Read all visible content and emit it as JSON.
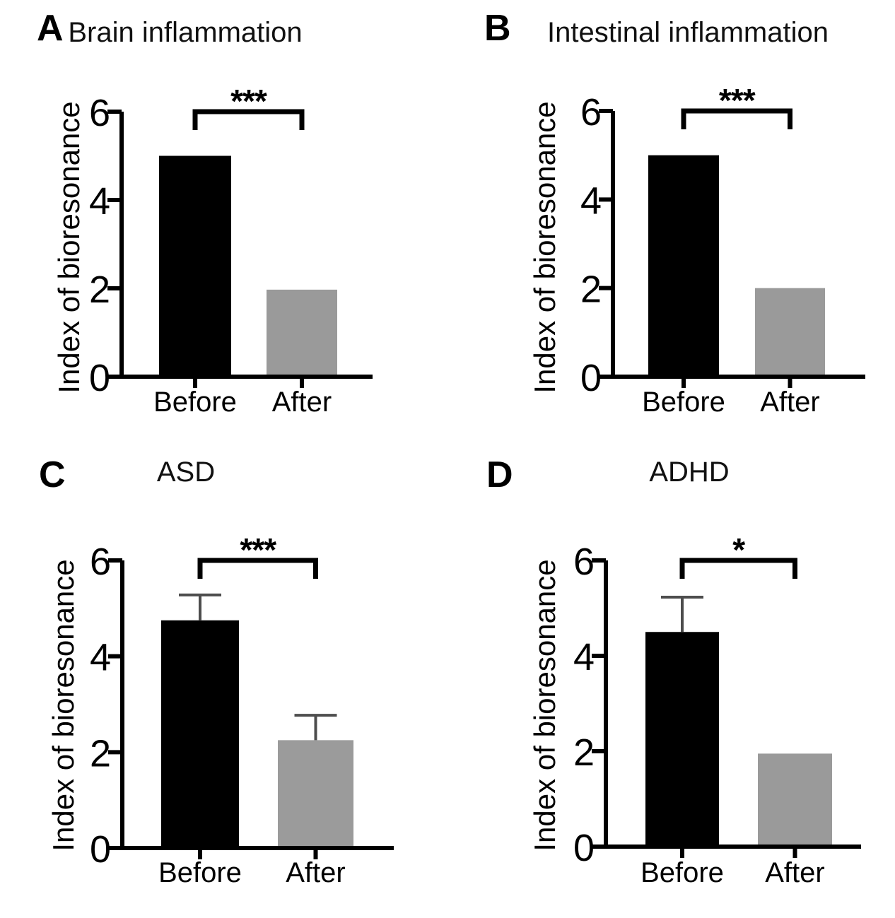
{
  "figure": {
    "background": "#ffffff",
    "panel_count": 4
  },
  "chart_data": [
    {
      "type": "bar",
      "panel_label": "A",
      "title": "Brain inflammation",
      "categories": [
        "Before",
        "After"
      ],
      "values": [
        5.0,
        1.97
      ],
      "errors": [
        0,
        0
      ],
      "significance": "***",
      "ylabel": "Index of bioresonance",
      "yticks": [
        0,
        2,
        4,
        6
      ],
      "ylim": [
        0,
        6
      ],
      "bar_colors": [
        "#000000",
        "#9a9a9a"
      ],
      "error_color": "#4d4d4d",
      "axis_color": "#000000",
      "legend": "none",
      "grid": "off"
    },
    {
      "type": "bar",
      "panel_label": "B",
      "title": "Intestinal inflammation",
      "categories": [
        "Before",
        "After"
      ],
      "values": [
        5.0,
        2.0
      ],
      "errors": [
        0,
        0
      ],
      "significance": "***",
      "ylabel": "Index of bioresonance",
      "yticks": [
        0,
        2,
        4,
        6
      ],
      "ylim": [
        0,
        6
      ],
      "bar_colors": [
        "#000000",
        "#9a9a9a"
      ],
      "error_color": "#4d4d4d",
      "axis_color": "#000000",
      "legend": "none",
      "grid": "off"
    },
    {
      "type": "bar",
      "panel_label": "C",
      "title": "ASD",
      "categories": [
        "Before",
        "After"
      ],
      "values": [
        4.75,
        2.25
      ],
      "errors": [
        0.53,
        0.52
      ],
      "significance": "***",
      "ylabel": "Index of bioresonance",
      "yticks": [
        0,
        2,
        4,
        6
      ],
      "ylim": [
        0,
        6
      ],
      "bar_colors": [
        "#000000",
        "#9b9b9b"
      ],
      "error_color": "#4d4d4d",
      "axis_color": "#000000",
      "legend": "none",
      "grid": "off"
    },
    {
      "type": "bar",
      "panel_label": "D",
      "title": "ADHD",
      "categories": [
        "Before",
        "After"
      ],
      "values": [
        4.5,
        1.95
      ],
      "errors": [
        0.73,
        0
      ],
      "significance": "*",
      "ylabel": "Index of bioresonance",
      "yticks": [
        0,
        2,
        4,
        6
      ],
      "ylim": [
        0,
        6
      ],
      "bar_colors": [
        "#000000",
        "#9a9a9a"
      ],
      "error_color": "#4d4d4d",
      "axis_color": "#000000",
      "legend": "none",
      "grid": "off"
    }
  ]
}
